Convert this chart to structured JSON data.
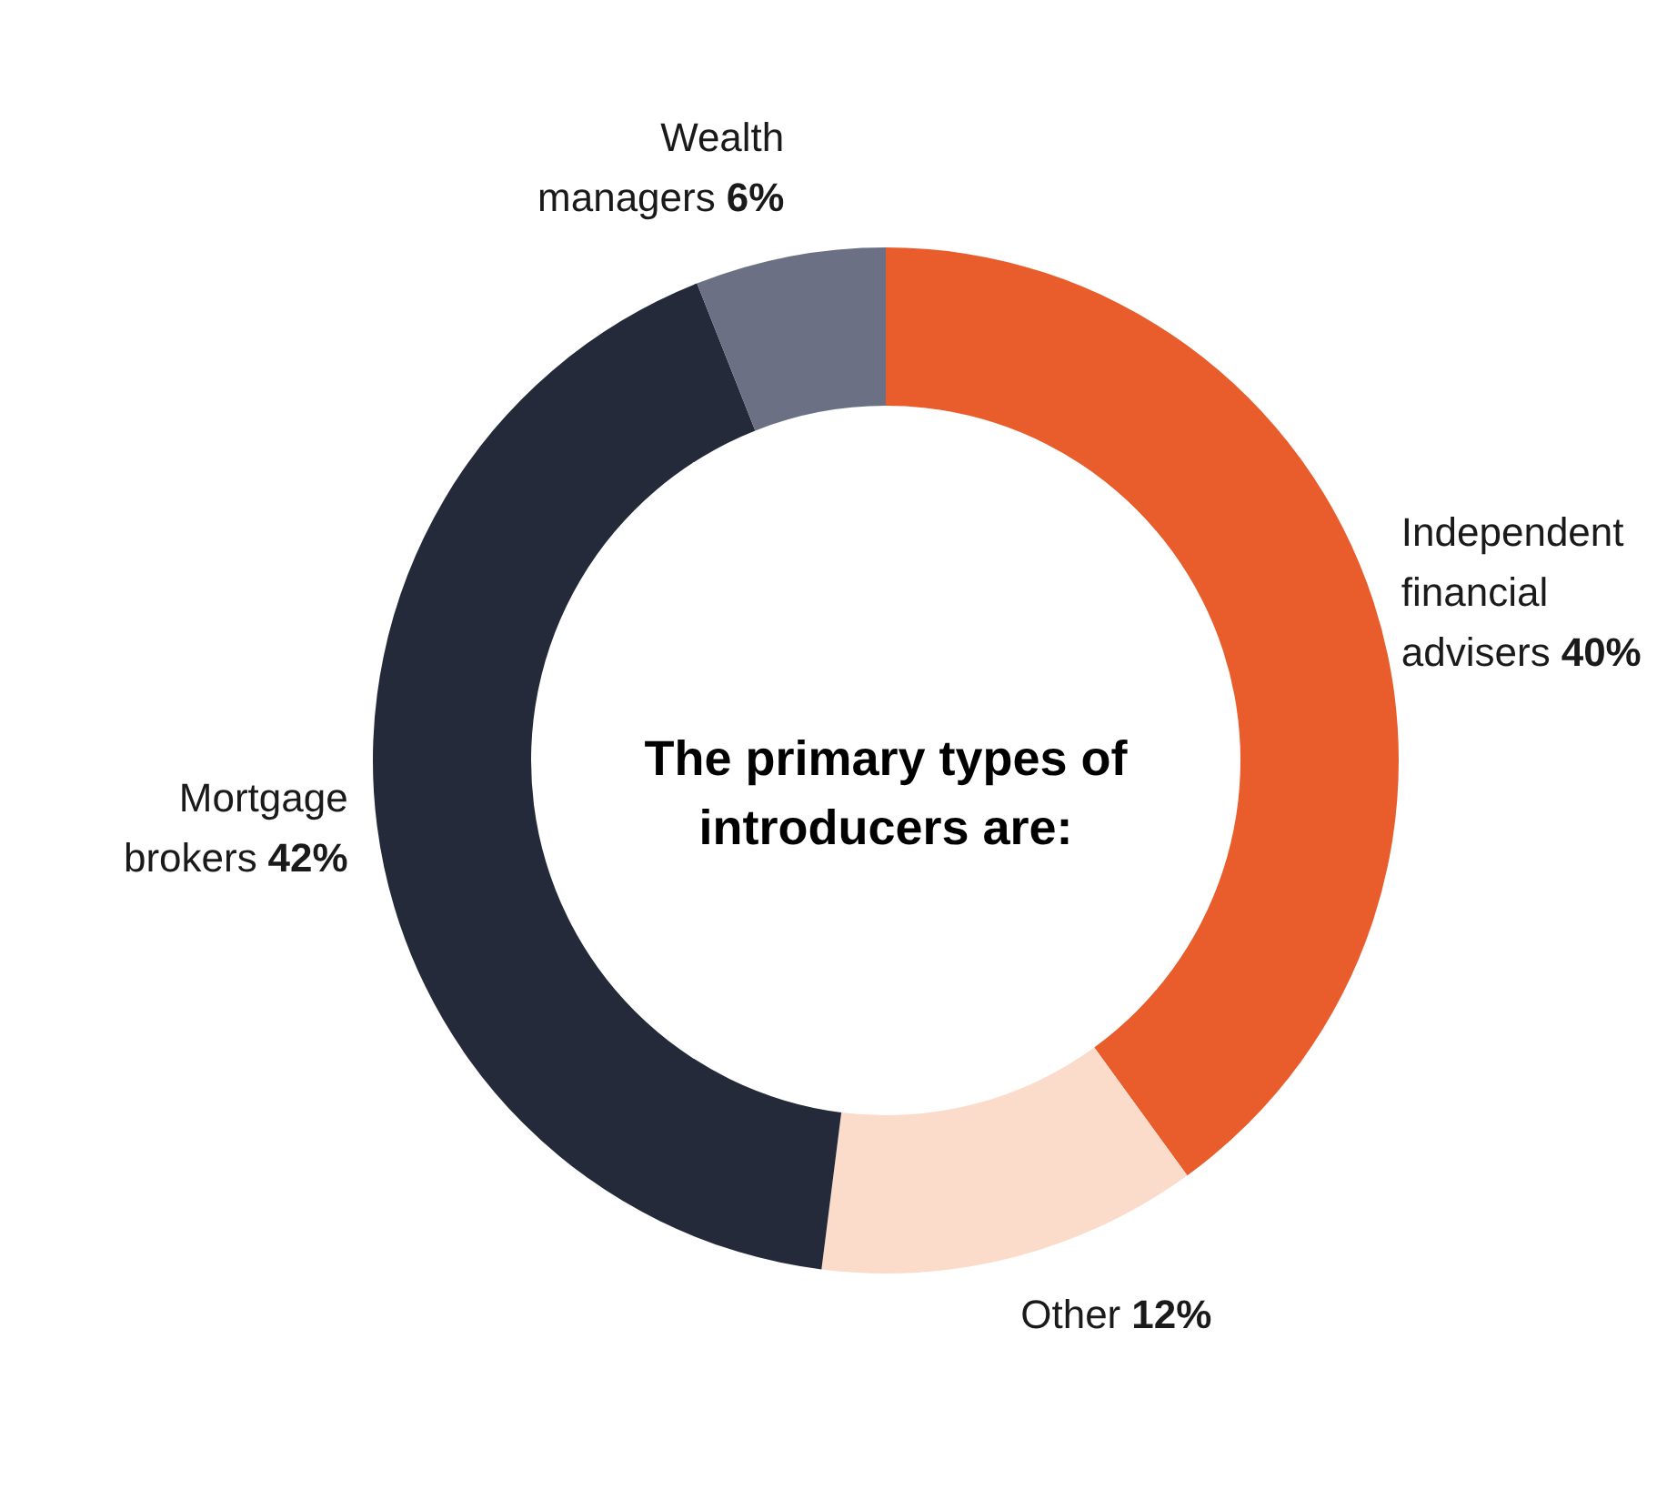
{
  "chart_data": {
    "type": "donut",
    "title": "The primary types of introducers are:",
    "categories": [
      "Independent financial advisers",
      "Other",
      "Mortgage brokers",
      "Wealth managers"
    ],
    "values": [
      40,
      12,
      42,
      6
    ],
    "value_labels": [
      "40%",
      "12%",
      "42%",
      "6%"
    ],
    "colors": [
      "#e95d2c",
      "#fbdccb",
      "#242a3a",
      "#6b7084"
    ]
  }
}
